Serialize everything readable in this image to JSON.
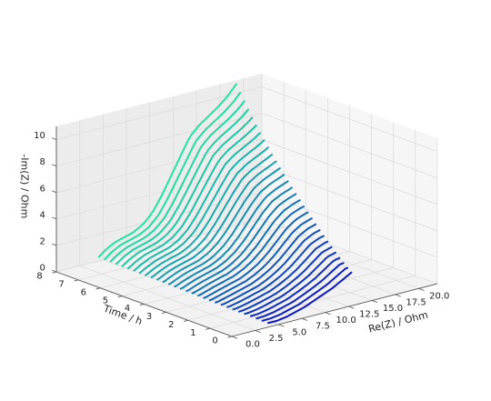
{
  "chart_data": {
    "type": "line",
    "projection": "3d",
    "xlabel": "Re(Z) / Ohm",
    "ylabel": "Time / h",
    "zlabel": "-Im(Z) / Ohm",
    "xlim": [
      0,
      22
    ],
    "ylim": [
      0,
      8
    ],
    "zlim": [
      0,
      11
    ],
    "xticks": [
      "0.0",
      "2.5",
      "5.0",
      "7.5",
      "10.0",
      "12.5",
      "15.0",
      "17.5",
      "20.0"
    ],
    "yticks": [
      "0",
      "1",
      "2",
      "3",
      "4",
      "5",
      "6",
      "7",
      "8"
    ],
    "zticks": [
      "0",
      "2",
      "4",
      "6",
      "8",
      "10"
    ],
    "grid": true,
    "colormap": {
      "start": "#0a14cc",
      "end": "#1ee6a0"
    },
    "series_count": 30,
    "series_time_range_h": [
      0.3,
      8.1
    ],
    "first_spectrum": {
      "re": [
        4.6,
        5.5,
        6.5,
        7.5,
        8.5,
        9.5,
        10.5,
        11.5,
        12.5,
        13.5
      ],
      "im": [
        0.0,
        0.0,
        0.1,
        0.3,
        0.5,
        0.8,
        1.1,
        1.4,
        1.8,
        2.2
      ]
    },
    "last_spectrum": {
      "re": [
        4.8,
        5.5,
        6.5,
        7.5,
        8.5,
        9.5,
        10.5,
        11.5,
        12.5,
        13.5,
        14.5,
        15.5,
        16.5,
        17.5,
        18.5,
        19.5
      ],
      "im": [
        0.2,
        0.6,
        1.0,
        1.2,
        1.4,
        1.8,
        2.5,
        3.6,
        4.9,
        6.2,
        7.5,
        8.2,
        8.7,
        9.2,
        9.8,
        10.6
      ]
    }
  }
}
